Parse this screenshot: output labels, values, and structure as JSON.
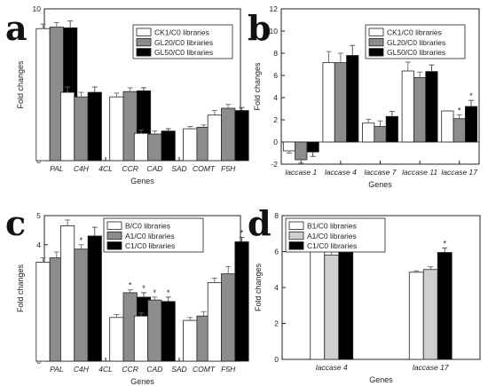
{
  "colors": {
    "s1": "#ffffff",
    "s2": "#8c8c8c",
    "s3": "#000000",
    "s2_light": "#cfcfcf",
    "err": "#666666"
  },
  "chart_data": [
    {
      "panel": "a",
      "type": "bar",
      "xlabel": "Genes",
      "ylabel": "Fold changes",
      "ylim": [
        0,
        10
      ],
      "yticks": [
        0,
        2,
        4,
        6,
        8,
        10
      ],
      "categories": [
        "PAL",
        "C4H",
        "4CL",
        "CCR",
        "CAD",
        "SAD",
        "COMT",
        "F5H"
      ],
      "legend_position": "top-right",
      "series": [
        {
          "name": "CK1/C0 libraries",
          "values": [
            8.7,
            4.5,
            null,
            4.2,
            1.8,
            null,
            2.1,
            3.0
          ],
          "errors": [
            0.3,
            0.35,
            null,
            0.25,
            0.2,
            null,
            0.15,
            0.3
          ]
        },
        {
          "name": "GL20/C0 libraries",
          "values": [
            8.8,
            4.2,
            null,
            4.55,
            1.75,
            null,
            2.2,
            3.45
          ],
          "errors": [
            0.3,
            0.3,
            null,
            0.25,
            0.2,
            null,
            0.15,
            0.25
          ]
        },
        {
          "name": "GL50/C0 libraries",
          "values": [
            8.75,
            4.5,
            null,
            4.6,
            1.95,
            null,
            2.3,
            3.3
          ],
          "errors": [
            0.45,
            0.35,
            null,
            0.2,
            0.15,
            null,
            0.1,
            0.2
          ]
        }
      ],
      "stars": []
    },
    {
      "panel": "b",
      "type": "bar",
      "xlabel": "Genes",
      "ylabel": "Fold changes",
      "ylim": [
        -2,
        12
      ],
      "yticks": [
        -2,
        0,
        2,
        4,
        6,
        8,
        10,
        12
      ],
      "categories": [
        "laccase 1",
        "laccase 4",
        "laccase 7",
        "laccase 11",
        "laccase 17"
      ],
      "legend_position": "top-right",
      "series": [
        {
          "name": "CK1/C0 libraries",
          "values": [
            -0.8,
            7.15,
            1.7,
            6.4,
            2.8
          ],
          "errors": [
            0.2,
            1.0,
            0.35,
            0.8,
            0.0
          ]
        },
        {
          "name": "GL20/C0 libraries",
          "values": [
            -1.6,
            7.15,
            1.4,
            5.8,
            2.1
          ],
          "errors": [
            0.3,
            0.85,
            0.5,
            0.5,
            0.35
          ]
        },
        {
          "name": "GL50/C0 libraries",
          "values": [
            -0.9,
            7.8,
            2.3,
            6.35,
            3.2
          ],
          "errors": [
            0.4,
            0.9,
            0.45,
            0.6,
            0.55
          ]
        }
      ],
      "stars": [
        {
          "category": 4,
          "series": 1,
          "text": "*"
        },
        {
          "category": 4,
          "series": 2,
          "text": "*"
        }
      ]
    },
    {
      "panel": "c",
      "type": "bar",
      "xlabel": "Genes",
      "ylabel": "Fold changes",
      "ylim": [
        0,
        5
      ],
      "yticks": [
        0,
        1,
        2,
        3,
        4,
        5
      ],
      "categories": [
        "PAL",
        "C4H",
        "4CL",
        "CCR",
        "CAD",
        "SAD",
        "COMT",
        "F5H"
      ],
      "legend_position": "top-left",
      "series": [
        {
          "name": "B/C0 libraries",
          "values": [
            3.4,
            4.65,
            null,
            1.5,
            1.55,
            null,
            1.4,
            2.7
          ],
          "errors": [
            0.15,
            0.2,
            null,
            0.1,
            0.1,
            null,
            0.1,
            0.15
          ]
        },
        {
          "name": "A1/C0 libraries",
          "values": [
            3.55,
            3.85,
            null,
            2.35,
            2.1,
            null,
            1.55,
            3.0
          ],
          "errors": [
            0.2,
            0.15,
            null,
            0.1,
            0.1,
            null,
            0.15,
            0.25
          ]
        },
        {
          "name": "C1/C0 libraries",
          "values": [
            3.5,
            4.3,
            null,
            2.2,
            2.05,
            null,
            1.55,
            4.1
          ],
          "errors": [
            0.25,
            0.3,
            null,
            0.15,
            0.15,
            null,
            0.15,
            0.15
          ]
        }
      ],
      "stars": [
        {
          "category": 1,
          "series": 1,
          "text": "*"
        },
        {
          "category": 3,
          "series": 1,
          "text": "*"
        },
        {
          "category": 3,
          "series": 2,
          "text": "*"
        },
        {
          "category": 4,
          "series": 1,
          "text": "*"
        },
        {
          "category": 4,
          "series": 2,
          "text": "*"
        },
        {
          "category": 7,
          "series": 2,
          "text": "*"
        }
      ]
    },
    {
      "panel": "d",
      "type": "bar",
      "xlabel": "Genes",
      "ylabel": "Fold changes",
      "ylim": [
        0,
        8
      ],
      "yticks": [
        0,
        2,
        4,
        6,
        8
      ],
      "categories": [
        "laccase 4",
        "laccase 17"
      ],
      "legend_position": "top-left",
      "series": [
        {
          "name": "B1/C0 libraries",
          "values": [
            6.1,
            4.85
          ],
          "errors": [
            0.2,
            0.08
          ]
        },
        {
          "name": "A1/C0 libraries",
          "values": [
            5.8,
            5.0
          ],
          "errors": [
            0.2,
            0.15
          ]
        },
        {
          "name": "C1/C0 libraries",
          "values": [
            6.15,
            5.95
          ],
          "errors": [
            0.0,
            0.25
          ]
        }
      ],
      "stars": [
        {
          "category": 1,
          "series": 2,
          "text": "*"
        }
      ]
    }
  ]
}
